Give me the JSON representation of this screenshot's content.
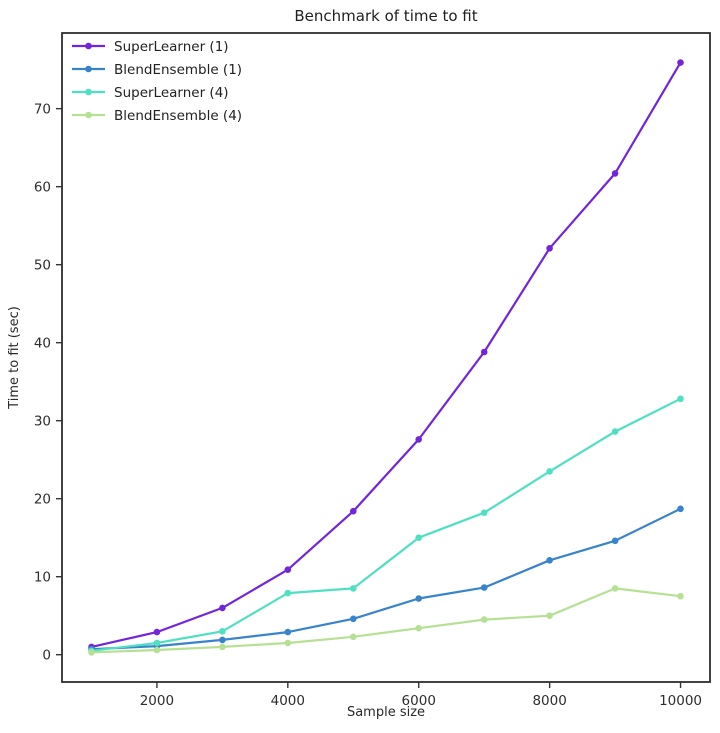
{
  "figure": {
    "background": "#ffffff",
    "spine_color": "#2e2e2e",
    "tick_color": "#333333"
  },
  "chart_data": {
    "type": "line",
    "title": "Benchmark of time to fit",
    "xlabel": "Sample size",
    "ylabel": "Time to fit (sec)",
    "x": [
      1000,
      2000,
      3000,
      4000,
      5000,
      6000,
      7000,
      8000,
      9000,
      10000
    ],
    "series": [
      {
        "name": "SuperLearner (1)",
        "color": "#7325d9",
        "values": [
          1.0,
          2.9,
          6.0,
          10.9,
          18.4,
          27.6,
          38.8,
          52.1,
          61.7,
          75.9
        ]
      },
      {
        "name": "BlendEnsemble (1)",
        "color": "#3884cc",
        "values": [
          0.7,
          1.1,
          1.9,
          2.9,
          4.6,
          7.2,
          8.6,
          12.1,
          14.6,
          18.7
        ]
      },
      {
        "name": "SuperLearner (4)",
        "color": "#4fe0c3",
        "values": [
          0.5,
          1.5,
          3.0,
          7.9,
          8.5,
          15.0,
          18.2,
          23.5,
          28.6,
          32.8
        ]
      },
      {
        "name": "BlendEnsemble (4)",
        "color": "#b6e195",
        "values": [
          0.3,
          0.6,
          1.0,
          1.5,
          2.3,
          3.4,
          4.5,
          5.0,
          8.5,
          7.5
        ]
      }
    ],
    "xticks": [
      2000,
      4000,
      6000,
      8000,
      10000
    ],
    "yticks": [
      0,
      10,
      20,
      30,
      40,
      50,
      60,
      70
    ],
    "xlim": [
      550,
      10450
    ],
    "ylim": [
      -3.5,
      79.7
    ],
    "grid": false,
    "legend_position": "upper left"
  }
}
